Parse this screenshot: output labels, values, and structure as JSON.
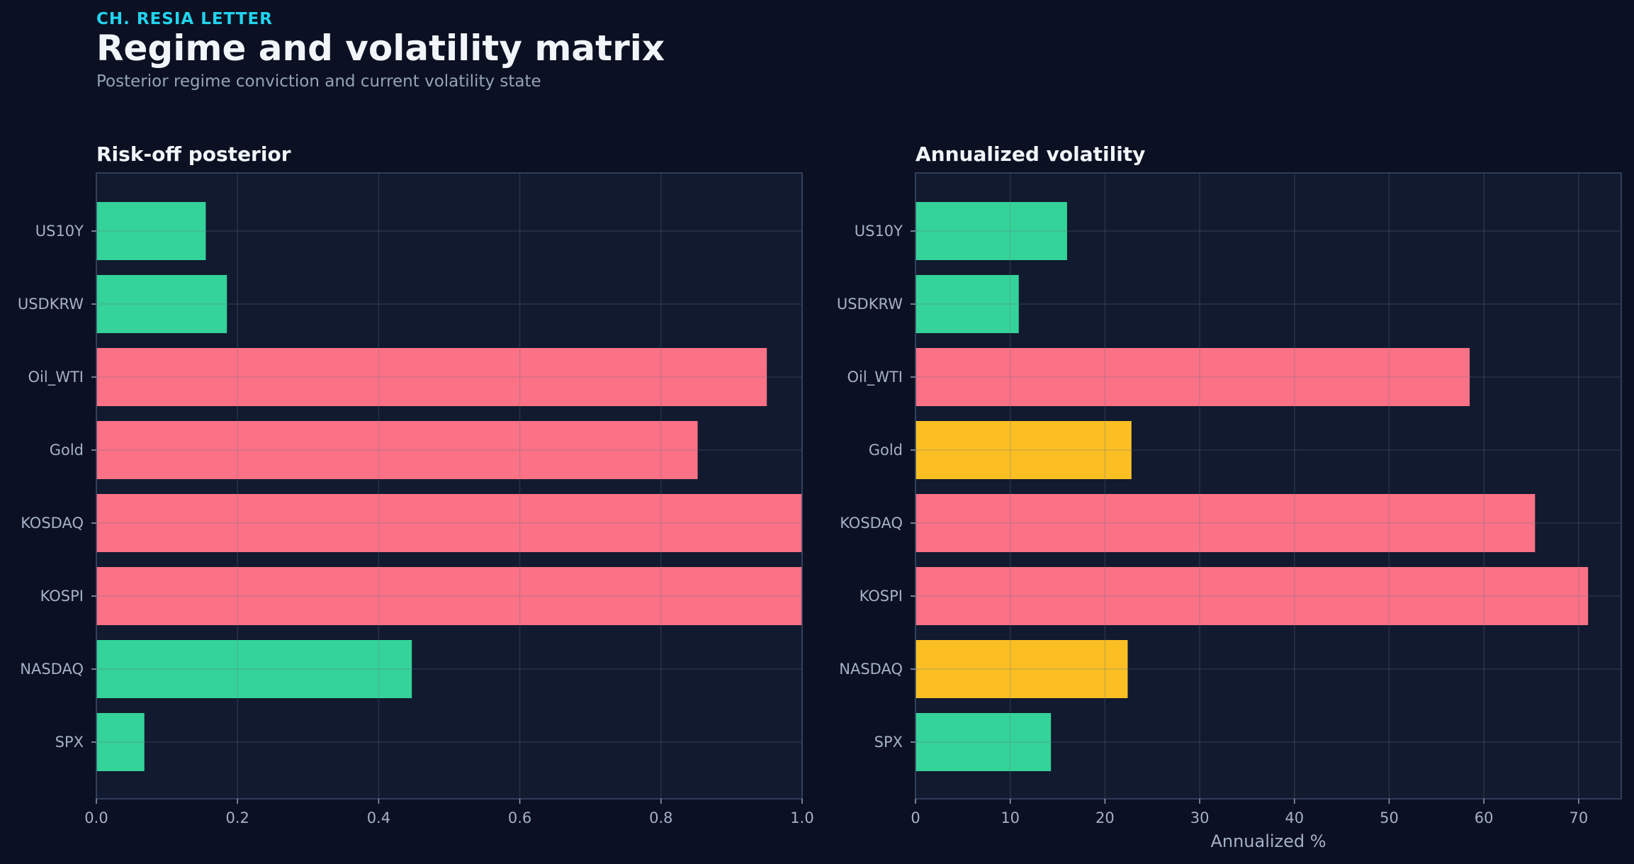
{
  "header": {
    "kicker": "CH. RESIA LETTER",
    "title": "Regime and volatility matrix",
    "subtitle": "Posterior regime conviction and current volatility state"
  },
  "colors": {
    "background": "#0b1122",
    "panel": "#111a2e",
    "green": "#34d399",
    "red": "#fb7185",
    "amber": "#fbbf24",
    "accent": "#22d3ee"
  },
  "chart_data": [
    {
      "type": "bar",
      "orientation": "horizontal",
      "title": "Risk-off posterior",
      "xlabel": "",
      "ylabel": "",
      "xlim": [
        0,
        1
      ],
      "xticks": [
        "0.0",
        "0.2",
        "0.4",
        "0.6",
        "0.8",
        "1.0"
      ],
      "grid": true,
      "categories": [
        "US10Y",
        "USDKRW",
        "Oil_WTI",
        "Gold",
        "KOSDAQ",
        "KOSPI",
        "NASDAQ",
        "SPX"
      ],
      "values": [
        0.155,
        0.185,
        0.95,
        0.852,
        1.0,
        1.0,
        0.447,
        0.068
      ],
      "bar_colors": [
        "green",
        "green",
        "red",
        "red",
        "red",
        "red",
        "green",
        "green"
      ]
    },
    {
      "type": "bar",
      "orientation": "horizontal",
      "title": "Annualized volatility",
      "xlabel": "Annualized %",
      "ylabel": "",
      "xlim": [
        0,
        74.5
      ],
      "xticks": [
        "0",
        "10",
        "20",
        "30",
        "40",
        "50",
        "60",
        "70"
      ],
      "grid": true,
      "categories": [
        "US10Y",
        "USDKRW",
        "Oil_WTI",
        "Gold",
        "KOSDAQ",
        "KOSPI",
        "NASDAQ",
        "SPX"
      ],
      "values": [
        16.0,
        10.9,
        58.5,
        22.8,
        65.4,
        71.0,
        22.4,
        14.3
      ],
      "bar_colors": [
        "green",
        "green",
        "red",
        "amber",
        "red",
        "red",
        "amber",
        "green"
      ]
    }
  ]
}
